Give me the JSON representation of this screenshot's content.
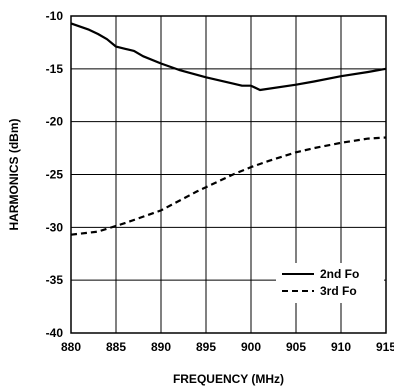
{
  "chart_data": {
    "type": "line",
    "title": "",
    "xlabel": "FREQUENCY (MHz)",
    "ylabel": "HARMONICS (dBm)",
    "xlim": [
      880,
      915
    ],
    "ylim": [
      -40,
      -10
    ],
    "x_ticks": [
      "880",
      "885",
      "890",
      "895",
      "900",
      "905",
      "910",
      "915"
    ],
    "y_ticks": [
      "-10",
      "-15",
      "-20",
      "-25",
      "-30",
      "-35",
      "-40"
    ],
    "grid": true,
    "legend_position": "bottom-right",
    "series": [
      {
        "name": "2nd Fo",
        "style": "solid",
        "color": "#000000",
        "x": [
          880,
          882,
          883,
          884,
          885,
          886,
          887,
          888,
          890,
          892,
          895,
          898,
          899,
          900,
          901,
          905,
          907,
          910,
          913,
          915
        ],
        "y": [
          -10.7,
          -11.3,
          -11.7,
          -12.2,
          -12.9,
          -13.1,
          -13.3,
          -13.8,
          -14.5,
          -15.1,
          -15.8,
          -16.4,
          -16.6,
          -16.6,
          -17.0,
          -16.5,
          -16.2,
          -15.7,
          -15.3,
          -15.0
        ]
      },
      {
        "name": "3rd Fo",
        "style": "dashed",
        "color": "#000000",
        "x": [
          880,
          883,
          886,
          890,
          894,
          898,
          900,
          902,
          905,
          907,
          910,
          913,
          915
        ],
        "y": [
          -30.7,
          -30.4,
          -29.6,
          -28.4,
          -26.6,
          -25.0,
          -24.3,
          -23.7,
          -22.9,
          -22.5,
          -22.0,
          -21.6,
          -21.5
        ]
      }
    ]
  }
}
